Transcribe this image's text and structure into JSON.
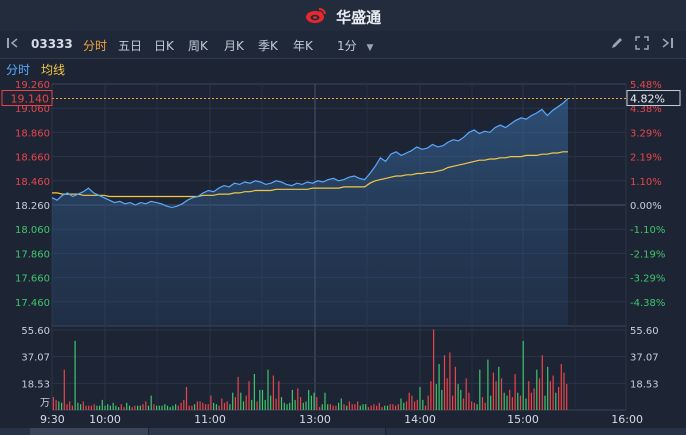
{
  "header": {
    "brand": "华盛通"
  },
  "toolbar": {
    "stock_code": "03333",
    "tabs": [
      "分时",
      "五日",
      "日K",
      "周K",
      "月K",
      "季K",
      "年K"
    ],
    "active_tab": "分时",
    "period": "1分"
  },
  "subbar": {
    "mode": "分时",
    "avg_label": "均线"
  },
  "colors": {
    "up": "#e8454a",
    "down": "#3fc56b",
    "price_line": "#5aa9ff",
    "avg_line": "#f2c744",
    "active": "#f2a33a"
  },
  "chart_data": {
    "type": "line",
    "title": "",
    "prev_close": 18.26,
    "current_price_label": "19.140",
    "current_pct_label": "4.82%",
    "price_ticks": [
      "19.260",
      "19.060",
      "18.860",
      "18.660",
      "18.460",
      "18.260",
      "18.060",
      "17.860",
      "17.660",
      "17.460"
    ],
    "pct_ticks": [
      "5.48%",
      "4.38%",
      "3.29%",
      "2.19%",
      "1.10%",
      "0.00%",
      "-1.10%",
      "-2.19%",
      "-3.29%",
      "-4.38%"
    ],
    "ylim": [
      17.26,
      19.26
    ],
    "time_ticks": [
      "9:30",
      "10:00",
      "11:00",
      "13:00",
      "14:00",
      "15:00",
      "16:00"
    ],
    "volume_ticks": [
      "55.60",
      "37.07",
      "18.53",
      "万"
    ],
    "volume_max": 55.6,
    "series": [
      {
        "kind": "price",
        "values": [
          18.32,
          18.3,
          18.34,
          18.36,
          18.33,
          18.35,
          18.37,
          18.4,
          18.36,
          18.34,
          18.32,
          18.3,
          18.28,
          18.29,
          18.27,
          18.28,
          18.26,
          18.28,
          18.27,
          18.29,
          18.28,
          18.27,
          18.25,
          18.24,
          18.25,
          18.27,
          18.3,
          18.32,
          18.33,
          18.36,
          18.38,
          18.37,
          18.4,
          18.42,
          18.41,
          18.44,
          18.43,
          18.45,
          18.44,
          18.46,
          18.45,
          18.43,
          18.44,
          18.46,
          18.45,
          18.43,
          18.42,
          18.44,
          18.43,
          18.45,
          18.44,
          18.46,
          18.45,
          18.47,
          18.48,
          18.46,
          18.47,
          18.49,
          18.5,
          18.48,
          18.47,
          18.52,
          18.58,
          18.65,
          18.62,
          18.68,
          18.7,
          18.67,
          18.69,
          18.71,
          18.74,
          18.72,
          18.73,
          18.76,
          18.74,
          18.75,
          18.78,
          18.8,
          18.79,
          18.82,
          18.86,
          18.88,
          18.85,
          18.87,
          18.86,
          18.9,
          18.92,
          18.9,
          18.93,
          18.96,
          18.98,
          18.97,
          19.0,
          19.02,
          19.05,
          19.0,
          19.04,
          19.07,
          19.1,
          19.14
        ]
      },
      {
        "kind": "average",
        "values": [
          18.36,
          18.36,
          18.35,
          18.35,
          18.35,
          18.35,
          18.34,
          18.34,
          18.34,
          18.34,
          18.34,
          18.33,
          18.33,
          18.33,
          18.33,
          18.33,
          18.33,
          18.33,
          18.33,
          18.33,
          18.33,
          18.33,
          18.33,
          18.33,
          18.33,
          18.33,
          18.33,
          18.33,
          18.33,
          18.34,
          18.34,
          18.34,
          18.35,
          18.35,
          18.35,
          18.36,
          18.36,
          18.37,
          18.37,
          18.38,
          18.38,
          18.38,
          18.38,
          18.39,
          18.39,
          18.39,
          18.39,
          18.39,
          18.39,
          18.39,
          18.4,
          18.4,
          18.4,
          18.4,
          18.4,
          18.4,
          18.41,
          18.41,
          18.41,
          18.41,
          18.41,
          18.44,
          18.46,
          18.47,
          18.48,
          18.49,
          18.5,
          18.5,
          18.51,
          18.51,
          18.52,
          18.52,
          18.53,
          18.53,
          18.54,
          18.55,
          18.57,
          18.58,
          18.59,
          18.6,
          18.61,
          18.62,
          18.63,
          18.63,
          18.64,
          18.64,
          18.65,
          18.65,
          18.66,
          18.66,
          18.66,
          18.67,
          18.67,
          18.67,
          18.68,
          18.68,
          18.69,
          18.69,
          18.7,
          18.7
        ]
      }
    ],
    "volume_values": [
      9,
      7,
      6,
      5,
      28,
      4,
      6,
      3,
      48,
      5,
      4,
      6,
      3,
      3,
      3,
      4,
      3,
      3,
      7,
      3,
      4,
      3,
      5,
      3,
      2,
      4,
      2,
      5,
      3,
      2,
      3,
      3,
      3,
      4,
      6,
      3,
      10,
      4,
      3,
      3,
      3,
      4,
      3,
      2,
      3,
      4,
      3,
      5,
      7,
      16,
      3,
      3,
      4,
      6,
      6,
      5,
      4,
      4,
      10,
      5,
      4,
      3,
      8,
      5,
      6,
      4,
      12,
      9,
      23,
      12,
      6,
      10,
      20,
      7,
      25,
      6,
      14,
      14,
      7,
      28,
      10,
      24,
      8,
      20,
      9,
      5,
      4,
      5,
      14,
      7,
      15,
      9,
      5,
      6,
      14,
      10,
      12,
      9,
      2,
      4,
      12,
      4,
      4,
      3,
      3,
      5,
      8,
      4,
      3,
      6,
      4,
      4,
      6,
      3,
      4,
      4,
      2,
      3,
      4,
      3,
      5,
      2,
      3,
      3,
      4,
      4,
      3,
      4,
      8,
      5,
      6,
      12,
      10,
      6,
      7,
      16,
      7,
      3,
      10,
      20,
      56,
      18,
      32,
      14,
      38,
      22,
      40,
      10,
      30,
      18,
      14,
      8,
      22,
      12,
      6,
      5,
      4,
      28,
      9,
      5,
      35,
      10,
      26,
      20,
      30,
      22,
      12,
      10,
      14,
      9,
      25,
      12,
      10,
      48,
      8,
      20,
      12,
      15,
      28,
      22,
      38,
      10,
      30,
      20,
      24,
      12,
      16,
      32,
      26,
      18
    ]
  }
}
